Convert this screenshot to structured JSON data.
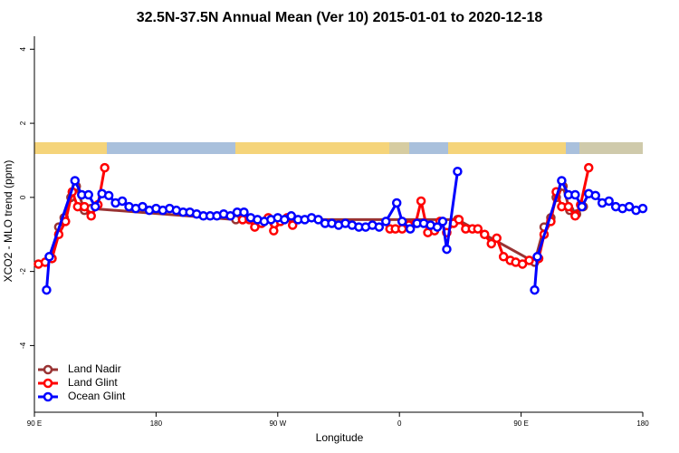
{
  "chart_data": {
    "type": "line",
    "title": "32.5N-37.5N Annual Mean (Ver 10)   2015-01-01 to 2020-12-18",
    "x_label": "Longitude",
    "y_label": "XCO2 - MLO trend (ppm)",
    "xlim": [
      90,
      540
    ],
    "ylim": [
      -5.8,
      4.35
    ],
    "xticks": [
      {
        "value": 90,
        "label": "90 E"
      },
      {
        "value": 180,
        "label": "180"
      },
      {
        "value": 270,
        "label": "90 W"
      },
      {
        "value": 360,
        "label": "0"
      },
      {
        "value": 450,
        "label": "90 E"
      },
      {
        "value": 540,
        "label": "180"
      }
    ],
    "yticks": [
      -4,
      -2,
      0,
      2,
      4
    ],
    "legend": "bottom-left",
    "series": [
      {
        "name": "Land Nadir",
        "color": "#993333",
        "x": [
          103,
          108,
          112,
          117,
          121,
          127,
          132,
          239,
          244,
          403,
          460,
          467,
          472,
          476,
          481,
          486,
          491,
          496
        ],
        "values": [
          -1.65,
          -0.8,
          -0.55,
          0.0,
          0.3,
          -0.35,
          -0.3,
          -0.6,
          -0.6,
          -0.6,
          -1.75,
          -0.8,
          -0.55,
          0.0,
          0.3,
          -0.35,
          -0.45,
          -0.25
        ]
      },
      {
        "name": "Land Glint",
        "color": "#ff0000",
        "x": [
          93,
          98,
          103,
          108,
          113,
          118,
          122,
          127,
          132,
          137,
          142,
          null,
          244,
          249,
          253,
          258,
          263,
          267,
          272,
          277,
          281,
          null,
          353,
          357,
          362,
          367,
          372,
          376,
          381,
          386,
          390,
          395,
          400,
          404,
          409,
          414,
          418,
          423,
          428,
          432,
          437,
          442,
          446,
          451,
          456,
          463,
          467,
          472,
          476,
          480,
          485,
          490,
          494,
          500
        ],
        "values": [
          -1.8,
          -1.75,
          -1.65,
          -1.0,
          -0.65,
          0.15,
          -0.25,
          -0.25,
          -0.5,
          -0.2,
          0.8,
          null,
          -0.6,
          -0.6,
          -0.8,
          -0.7,
          -0.55,
          -0.9,
          -0.65,
          -0.55,
          -0.75,
          null,
          -0.85,
          -0.85,
          -0.85,
          -0.75,
          -0.7,
          -0.1,
          -0.95,
          -0.9,
          -0.65,
          -0.95,
          -0.7,
          -0.6,
          -0.85,
          -0.85,
          -0.85,
          -1.0,
          -1.25,
          -1.1,
          -1.6,
          -1.7,
          -1.75,
          -1.8,
          -1.7,
          -1.65,
          -1.0,
          -0.65,
          0.15,
          -0.25,
          -0.25,
          -0.5,
          -0.2,
          0.8
        ]
      },
      {
        "name": "Ocean Glint",
        "color": "#0000ff",
        "x": [
          99,
          101,
          120,
          125,
          130,
          135,
          140,
          145,
          150,
          155,
          160,
          165,
          170,
          175,
          180,
          185,
          190,
          195,
          200,
          205,
          210,
          215,
          220,
          225,
          230,
          235,
          240,
          245,
          250,
          255,
          260,
          265,
          270,
          275,
          280,
          285,
          290,
          295,
          300,
          305,
          310,
          315,
          320,
          325,
          330,
          335,
          340,
          345,
          350,
          358,
          362,
          368,
          373,
          378,
          383,
          388,
          392,
          395,
          403,
          null,
          460,
          462,
          480,
          485,
          490,
          495,
          500,
          505,
          510,
          515,
          520,
          525,
          530,
          535,
          540
        ],
        "values": [
          -2.5,
          -1.6,
          0.45,
          0.07,
          0.07,
          -0.25,
          0.1,
          0.05,
          -0.15,
          -0.1,
          -0.25,
          -0.3,
          -0.25,
          -0.35,
          -0.3,
          -0.35,
          -0.3,
          -0.35,
          -0.4,
          -0.4,
          -0.45,
          -0.5,
          -0.5,
          -0.5,
          -0.45,
          -0.5,
          -0.4,
          -0.4,
          -0.55,
          -0.6,
          -0.65,
          -0.6,
          -0.55,
          -0.6,
          -0.5,
          -0.6,
          -0.6,
          -0.55,
          -0.6,
          -0.7,
          -0.7,
          -0.75,
          -0.7,
          -0.75,
          -0.8,
          -0.8,
          -0.75,
          -0.8,
          -0.65,
          -0.15,
          -0.65,
          -0.85,
          -0.7,
          -0.7,
          -0.75,
          -0.8,
          -0.65,
          -1.4,
          0.7,
          null,
          -2.5,
          -1.6,
          0.45,
          0.07,
          0.07,
          -0.25,
          0.1,
          0.05,
          -0.15,
          -0.1,
          -0.25,
          -0.3,
          -0.25,
          -0.35,
          -0.3
        ]
      }
    ]
  }
}
